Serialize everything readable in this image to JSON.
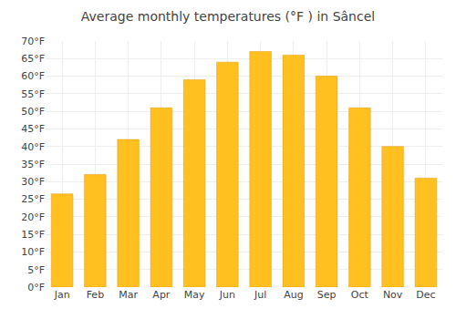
{
  "chart_data": {
    "type": "bar",
    "title": "Average monthly temperatures (°F ) in Sâncel",
    "categories": [
      "Jan",
      "Feb",
      "Mar",
      "Apr",
      "May",
      "Jun",
      "Jul",
      "Aug",
      "Sep",
      "Oct",
      "Nov",
      "Dec"
    ],
    "values": [
      26.5,
      32.0,
      42.0,
      51.0,
      59.0,
      64.0,
      67.0,
      66.0,
      60.0,
      51.0,
      40.0,
      31.0
    ],
    "color": "#FFC020",
    "ylim": [
      0,
      70
    ],
    "yticks": [
      {
        "value": 0,
        "label": "0°F"
      },
      {
        "value": 5,
        "label": "5°F"
      },
      {
        "value": 10,
        "label": "10°F"
      },
      {
        "value": 15,
        "label": "15°F"
      },
      {
        "value": 20,
        "label": "20°F"
      },
      {
        "value": 25,
        "label": "25°F"
      },
      {
        "value": 30,
        "label": "30°F"
      },
      {
        "value": 35,
        "label": "35°F"
      },
      {
        "value": 40,
        "label": "40°F"
      },
      {
        "value": 45,
        "label": "45°F"
      },
      {
        "value": 50,
        "label": "50°F"
      },
      {
        "value": 55,
        "label": "55°F"
      },
      {
        "value": 60,
        "label": "60°F"
      },
      {
        "value": 65,
        "label": "65°F"
      },
      {
        "value": 70,
        "label": "70°F"
      }
    ],
    "grid": true
  }
}
